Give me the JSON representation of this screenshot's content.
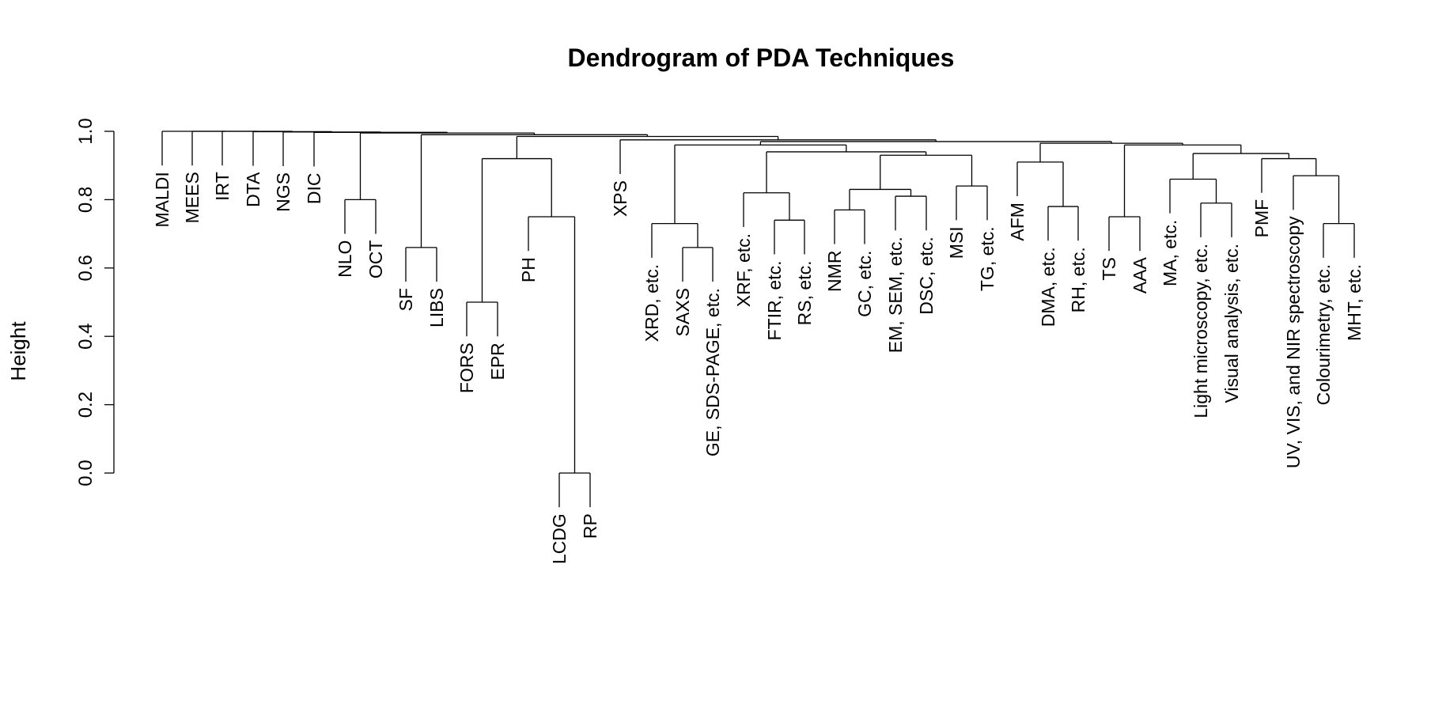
{
  "chart_data": {
    "type": "dendrogram",
    "title": "Dendrogram of PDA Techniques",
    "xlabel": "",
    "ylabel": "Height",
    "ylim": [
      0,
      1
    ],
    "yticks": [
      "0.0",
      "0.2",
      "0.4",
      "0.6",
      "0.8",
      "1.0"
    ],
    "leaves": [
      "MALDI",
      "MEES",
      "IRT",
      "DTA",
      "NGS",
      "DIC",
      "NLO",
      "OCT",
      "SF",
      "LIBS",
      "FORS",
      "EPR",
      "PH",
      "LCDG",
      "RP",
      "XPS",
      "XRD, etc.",
      "SAXS",
      "GE, SDS-PAGE, etc.",
      "XRF, etc.",
      "FTIR, etc.",
      "RS, etc.",
      "NMR",
      "GC, etc.",
      "EM, SEM, etc.",
      "DSC, etc.",
      "MSI",
      "TG, etc.",
      "AFM",
      "DMA, etc.",
      "RH, etc.",
      "TS",
      "AAA",
      "MA, etc.",
      "Light microscopy, etc.",
      "Visual analysis, etc.",
      "PMF",
      "UV, VIS, and NIR spectroscopy",
      "Colourimetry, etc.",
      "MHT, etc."
    ],
    "merges": [
      {
        "left": "LCDG",
        "right": "RP",
        "height": 0.0
      },
      {
        "left": "FORS",
        "right": "EPR",
        "height": 0.5
      },
      {
        "left": "SAXS",
        "right": "GE, SDS-PAGE, etc.",
        "height": 0.66
      },
      {
        "left": "SF",
        "right": "LIBS",
        "height": 0.66
      },
      {
        "left": "XRD, etc.",
        "right": "(SAXS, GE, SDS-PAGE, etc.)",
        "height": 0.73
      },
      {
        "left": "FTIR, etc.",
        "right": "RS, etc.",
        "height": 0.74
      },
      {
        "left": "TS",
        "right": "AAA",
        "height": 0.75
      },
      {
        "left": "PH",
        "right": "(LCDG, RP)",
        "height": 0.75
      },
      {
        "left": "NMR",
        "right": "GC, etc.",
        "height": 0.77
      },
      {
        "left": "DMA, etc.",
        "right": "RH, etc.",
        "height": 0.78
      },
      {
        "left": "Light microscopy, etc.",
        "right": "Visual analysis, etc.",
        "height": 0.79
      },
      {
        "left": "NLO",
        "right": "OCT",
        "height": 0.8
      },
      {
        "left": "EM, SEM, etc.",
        "right": "DSC, etc.",
        "height": 0.81
      },
      {
        "left": "XRF, etc.",
        "right": "(FTIR, RS)",
        "height": 0.82
      },
      {
        "left": "(NMR, GC)",
        "right": "(EM, DSC)",
        "height": 0.83
      },
      {
        "left": "MSI",
        "right": "TG, etc.",
        "height": 0.84
      },
      {
        "left": "MA, etc.",
        "right": "(Light microscopy, Visual analysis)",
        "height": 0.86
      },
      {
        "left": "Colourimetry, etc.",
        "right": "MHT, etc.",
        "height": 0.73
      },
      {
        "left": "UV, VIS, and NIR spectroscopy",
        "right": "(Colourimetry, MHT)",
        "height": 0.87
      },
      {
        "left": "AFM",
        "right": "(DMA, RH)",
        "height": 0.91
      },
      {
        "left": "PMF",
        "right": "(UV, Colourimetry, MHT)",
        "height": 0.92
      },
      {
        "left": "(FORS, EPR)",
        "right": "(PH, LCDG, RP)",
        "height": 0.92
      },
      {
        "left": "(NMR, GC, EM, DSC)",
        "right": "(MSI, TG)",
        "height": 0.93
      },
      {
        "left": "(MA, ...)",
        "right": "(PMF, ...)",
        "height": 0.935
      },
      {
        "left": "(XRF, FTIR, RS)",
        "right": "(NMR ... TG)",
        "height": 0.94
      },
      {
        "left": "(XRD, SAXS, GE)",
        "right": "(XRF ... TG)",
        "height": 0.96
      },
      {
        "left": "(TS, AAA)",
        "right": "(MA ... MHT)",
        "height": 0.96
      },
      {
        "left": "(AFM, DMA, RH)",
        "right": "(TS ... MHT)",
        "height": 0.965
      },
      {
        "left": "(XRD ... TG)",
        "right": "(AFM ... MHT)",
        "height": 0.97
      },
      {
        "left": "XPS",
        "right": "(XRD ... MHT)",
        "height": 0.975
      },
      {
        "left": "(FORS ... RP)",
        "right": "(XPS ... MHT)",
        "height": 0.985
      },
      {
        "left": "(SF, LIBS)",
        "right": "(FORS ... MHT)",
        "height": 0.99
      },
      {
        "left": "(NLO, OCT)",
        "right": "(SF ... MHT)",
        "height": 0.995
      },
      {
        "left": "DIC",
        "right": "(NLO ... MHT)",
        "height": 0.997
      },
      {
        "left": "NGS",
        "right": "(DIC ... MHT)",
        "height": 0.998
      },
      {
        "left": "DTA",
        "right": "(NGS ... MHT)",
        "height": 0.999
      },
      {
        "left": "IRT",
        "right": "(DTA ... MHT)",
        "height": 1.0
      },
      {
        "left": "MEES",
        "right": "(IRT ... MHT)",
        "height": 1.0
      },
      {
        "left": "MALDI",
        "right": "(MEES ... MHT)",
        "height": 1.0
      }
    ]
  }
}
